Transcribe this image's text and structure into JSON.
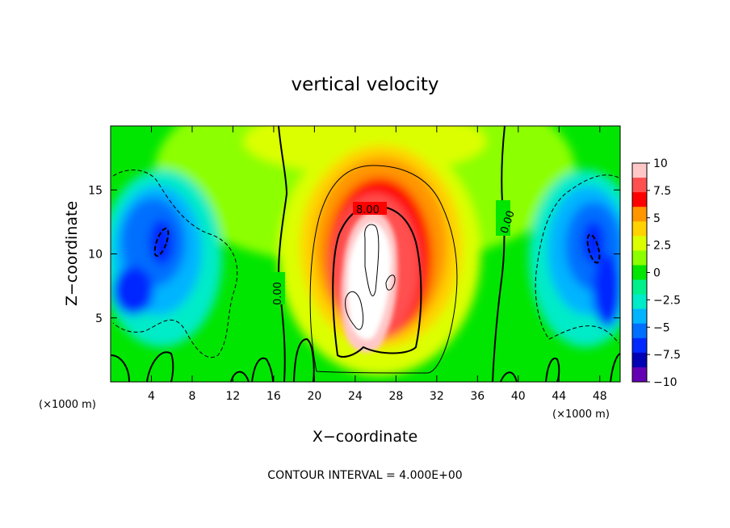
{
  "chart_data": {
    "type": "heatmap",
    "title": "vertical velocity",
    "xlabel": "X−coordinate",
    "ylabel": "Z−coordinate",
    "x_unit": "(×1000 m)",
    "y_unit": "",
    "xlim": [
      0,
      50
    ],
    "ylim": [
      0,
      20
    ],
    "xticks": [
      4,
      8,
      12,
      16,
      20,
      24,
      28,
      32,
      36,
      40,
      44,
      48
    ],
    "yticks": [
      5,
      10,
      15
    ],
    "colorbar": {
      "range": [
        -10,
        10
      ],
      "ticks": [
        "10",
        "7.5",
        "5",
        "2.5",
        "0",
        "−2.5",
        "−5",
        "−7.5",
        "−10"
      ],
      "colors": [
        "#ffc8c8",
        "#ff5050",
        "#ff0000",
        "#ff9600",
        "#ffd200",
        "#dcff00",
        "#8cff00",
        "#00e600",
        "#00f08c",
        "#00ebc8",
        "#00b4ff",
        "#006eff",
        "#0028ff",
        "#0000b4",
        "#6400b4"
      ]
    },
    "contour_labels": [
      "0.00",
      "0.00",
      "8.00"
    ],
    "contour_interval_text": "CONTOUR INTERVAL = 4.000E+00",
    "features": [
      {
        "kind": "updraft",
        "x_center": 26,
        "z_center": 9,
        "peak": 10
      },
      {
        "kind": "downdraft",
        "x_center": 5,
        "z_center": 11,
        "min": -8
      },
      {
        "kind": "downdraft",
        "x_center": 47,
        "z_center": 11,
        "min": -8
      }
    ]
  }
}
